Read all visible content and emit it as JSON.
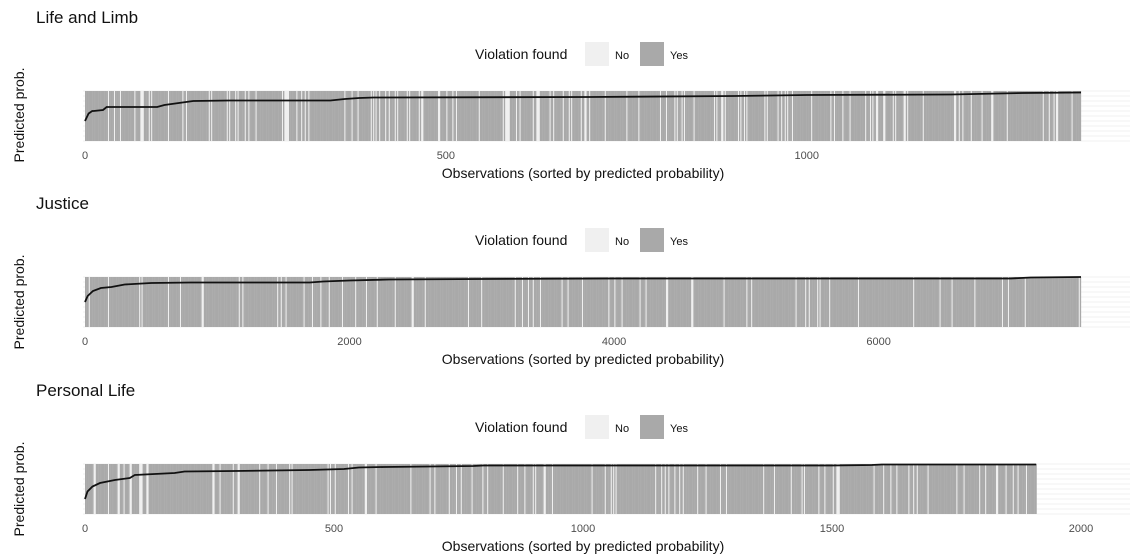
{
  "chart_data": [
    {
      "type": "bar",
      "title": "Life and Limb",
      "xlabel": "Observations (sorted by predicted probability)",
      "ylabel": "Predicted prob.",
      "legend": {
        "title": "Violation found",
        "placement": "top",
        "entries": [
          {
            "label": "No",
            "color": "#f0f0f0"
          },
          {
            "label": "Yes",
            "color": "#a9a9a9"
          }
        ]
      },
      "n": 1380,
      "xlim": [
        0,
        1380
      ],
      "xticks": [
        0,
        500,
        1000
      ],
      "ylim": [
        0,
        1
      ],
      "yes_share": 0.85,
      "line": {
        "x": [
          0,
          5,
          10,
          12,
          25,
          30,
          100,
          110,
          130,
          150,
          200,
          340,
          360,
          380,
          400,
          700,
          900,
          1000,
          1200,
          1300,
          1380
        ],
        "y": [
          0.4,
          0.55,
          0.6,
          0.6,
          0.62,
          0.68,
          0.68,
          0.72,
          0.76,
          0.8,
          0.81,
          0.81,
          0.84,
          0.86,
          0.87,
          0.88,
          0.9,
          0.92,
          0.93,
          0.96,
          0.97
        ]
      },
      "grid": true
    },
    {
      "type": "bar",
      "title": "Justice",
      "xlabel": "Observations (sorted by predicted probability)",
      "ylabel": "Predicted prob.",
      "legend": {
        "title": "Violation found",
        "placement": "top",
        "entries": [
          {
            "label": "No",
            "color": "#f0f0f0"
          },
          {
            "label": "Yes",
            "color": "#a9a9a9"
          }
        ]
      },
      "n": 7530,
      "xlim": [
        0,
        7530
      ],
      "xticks": [
        0,
        2000,
        4000,
        6000
      ],
      "ylim": [
        0,
        1
      ],
      "yes_share": 0.93,
      "line": {
        "x": [
          0,
          20,
          60,
          120,
          200,
          300,
          500,
          800,
          1700,
          1800,
          2000,
          2300,
          3000,
          4000,
          5000,
          6000,
          7000,
          7150,
          7530
        ],
        "y": [
          0.5,
          0.62,
          0.72,
          0.78,
          0.8,
          0.85,
          0.88,
          0.89,
          0.89,
          0.91,
          0.93,
          0.95,
          0.96,
          0.97,
          0.97,
          0.97,
          0.97,
          0.99,
          1.0
        ]
      },
      "grid": true
    },
    {
      "type": "bar",
      "title": "Personal Life",
      "xlabel": "Observations (sorted by predicted probability)",
      "ylabel": "Predicted prob.",
      "legend": {
        "title": "Violation found",
        "placement": "top",
        "entries": [
          {
            "label": "No",
            "color": "#f0f0f0"
          },
          {
            "label": "Yes",
            "color": "#a9a9a9"
          }
        ]
      },
      "n": 1910,
      "xlim": [
        0,
        2000
      ],
      "xticks": [
        0,
        500,
        1000,
        1500,
        2000
      ],
      "ylim": [
        0,
        1
      ],
      "yes_share": 0.88,
      "line": {
        "x": [
          0,
          5,
          15,
          30,
          60,
          90,
          100,
          180,
          200,
          300,
          450,
          520,
          550,
          600,
          780,
          800,
          1500,
          1580,
          1600,
          1910
        ],
        "y": [
          0.3,
          0.45,
          0.55,
          0.62,
          0.68,
          0.72,
          0.78,
          0.82,
          0.85,
          0.86,
          0.88,
          0.9,
          0.93,
          0.94,
          0.96,
          0.97,
          0.97,
          0.98,
          0.99,
          0.99
        ]
      },
      "grid": true
    }
  ]
}
